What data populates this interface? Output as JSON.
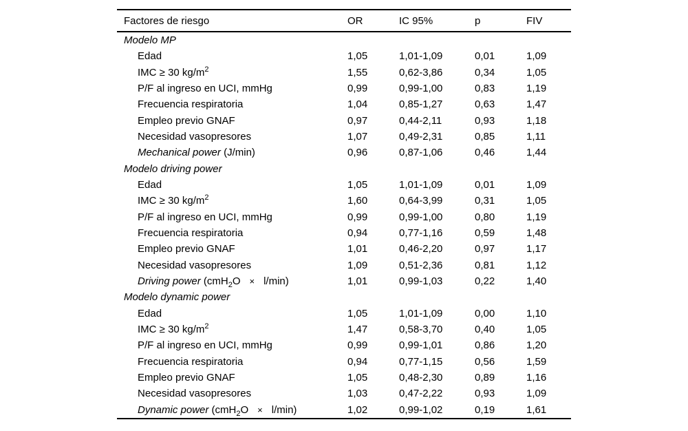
{
  "page": {
    "background_color": "#ffffff",
    "text_color": "#000000",
    "rule_color": "#000000"
  },
  "table": {
    "header": {
      "factor": "Factores de riesgo",
      "or": "OR",
      "ic95": "IC 95%",
      "p": "p",
      "fiv": "FIV"
    },
    "sections": [
      {
        "title": "Modelo MP",
        "rows": [
          {
            "label": [
              {
                "t": "Edad"
              }
            ],
            "or": "1,05",
            "ic95": "1,01-1,09",
            "p": "0,01",
            "fiv": "1,09"
          },
          {
            "label": [
              {
                "t": "IMC ≥ 30 kg/m"
              },
              {
                "t": "2",
                "s": "sup"
              }
            ],
            "or": "1,55",
            "ic95": "0,62-3,86",
            "p": "0,34",
            "fiv": "1,05"
          },
          {
            "label": [
              {
                "t": "P/F al ingreso en UCI, mmHg"
              }
            ],
            "or": "0,99",
            "ic95": "0,99-1,00",
            "p": "0,83",
            "fiv": "1,19"
          },
          {
            "label": [
              {
                "t": "Frecuencia respiratoria"
              }
            ],
            "or": "1,04",
            "ic95": "0,85-1,27",
            "p": "0,63",
            "fiv": "1,47"
          },
          {
            "label": [
              {
                "t": "Empleo previo GNAF"
              }
            ],
            "or": "0,97",
            "ic95": "0,44-2,11",
            "p": "0,93",
            "fiv": "1,18"
          },
          {
            "label": [
              {
                "t": "Necesidad vasopresores"
              }
            ],
            "or": "1,07",
            "ic95": "0,49-2,31",
            "p": "0,85",
            "fiv": "1,11"
          },
          {
            "label": [
              {
                "t": "Mechanical power",
                "s": "i"
              },
              {
                "t": " (J/min)"
              }
            ],
            "or": "0,96",
            "ic95": "0,87-1,06",
            "p": "0,46",
            "fiv": "1,44"
          }
        ]
      },
      {
        "title": "Modelo driving power",
        "rows": [
          {
            "label": [
              {
                "t": "Edad"
              }
            ],
            "or": "1,05",
            "ic95": "1,01-1,09",
            "p": "0,01",
            "fiv": "1,09"
          },
          {
            "label": [
              {
                "t": "IMC ≥ 30 kg/m"
              },
              {
                "t": "2",
                "s": "sup"
              }
            ],
            "or": "1,60",
            "ic95": "0,64-3,99",
            "p": "0,31",
            "fiv": "1,05"
          },
          {
            "label": [
              {
                "t": "P/F al ingreso en UCI, mmHg"
              }
            ],
            "or": "0,99",
            "ic95": "0,99-1,00",
            "p": "0,80",
            "fiv": "1,19"
          },
          {
            "label": [
              {
                "t": "Frecuencia respiratoria"
              }
            ],
            "or": "0,94",
            "ic95": "0,77-1,16",
            "p": "0,59",
            "fiv": "1,48"
          },
          {
            "label": [
              {
                "t": "Empleo previo GNAF"
              }
            ],
            "or": "1,01",
            "ic95": "0,46-2,20",
            "p": "0,97",
            "fiv": "1,17"
          },
          {
            "label": [
              {
                "t": "Necesidad vasopresores"
              }
            ],
            "or": "1,09",
            "ic95": "0,51-2,36",
            "p": "0,81",
            "fiv": "1,12"
          },
          {
            "label": [
              {
                "t": "Driving power",
                "s": "i"
              },
              {
                "t": " (cmH"
              },
              {
                "t": "2",
                "s": "sub"
              },
              {
                "t": "O"
              },
              {
                "t": "×",
                "s": "x"
              },
              {
                "t": "l/min)"
              }
            ],
            "or": "1,01",
            "ic95": "0,99-1,03",
            "p": "0,22",
            "fiv": "1,40"
          }
        ]
      },
      {
        "title": "Modelo dynamic power",
        "rows": [
          {
            "label": [
              {
                "t": "Edad"
              }
            ],
            "or": "1,05",
            "ic95": "1,01-1,09",
            "p": "0,00",
            "fiv": "1,10"
          },
          {
            "label": [
              {
                "t": "IMC ≥ 30 kg/m"
              },
              {
                "t": "2",
                "s": "sup"
              }
            ],
            "or": "1,47",
            "ic95": "0,58-3,70",
            "p": "0,40",
            "fiv": "1,05"
          },
          {
            "label": [
              {
                "t": "P/F al ingreso en UCI, mmHg"
              }
            ],
            "or": "0,99",
            "ic95": "0,99-1,01",
            "p": "0,86",
            "fiv": "1,20"
          },
          {
            "label": [
              {
                "t": "Frecuencia respiratoria"
              }
            ],
            "or": "0,94",
            "ic95": "0,77-1,15",
            "p": "0,56",
            "fiv": "1,59"
          },
          {
            "label": [
              {
                "t": "Empleo previo GNAF"
              }
            ],
            "or": "1,05",
            "ic95": "0,48-2,30",
            "p": "0,89",
            "fiv": "1,16"
          },
          {
            "label": [
              {
                "t": "Necesidad vasopresores"
              }
            ],
            "or": "1,03",
            "ic95": "0,47-2,22",
            "p": "0,93",
            "fiv": "1,09"
          },
          {
            "label": [
              {
                "t": "Dynamic power",
                "s": "i"
              },
              {
                "t": " (cmH"
              },
              {
                "t": "2",
                "s": "sub"
              },
              {
                "t": "O"
              },
              {
                "t": "×",
                "s": "x"
              },
              {
                "t": "l/min)"
              }
            ],
            "or": "1,02",
            "ic95": "0,99-1,02",
            "p": "0,19",
            "fiv": "1,61"
          }
        ]
      }
    ]
  }
}
